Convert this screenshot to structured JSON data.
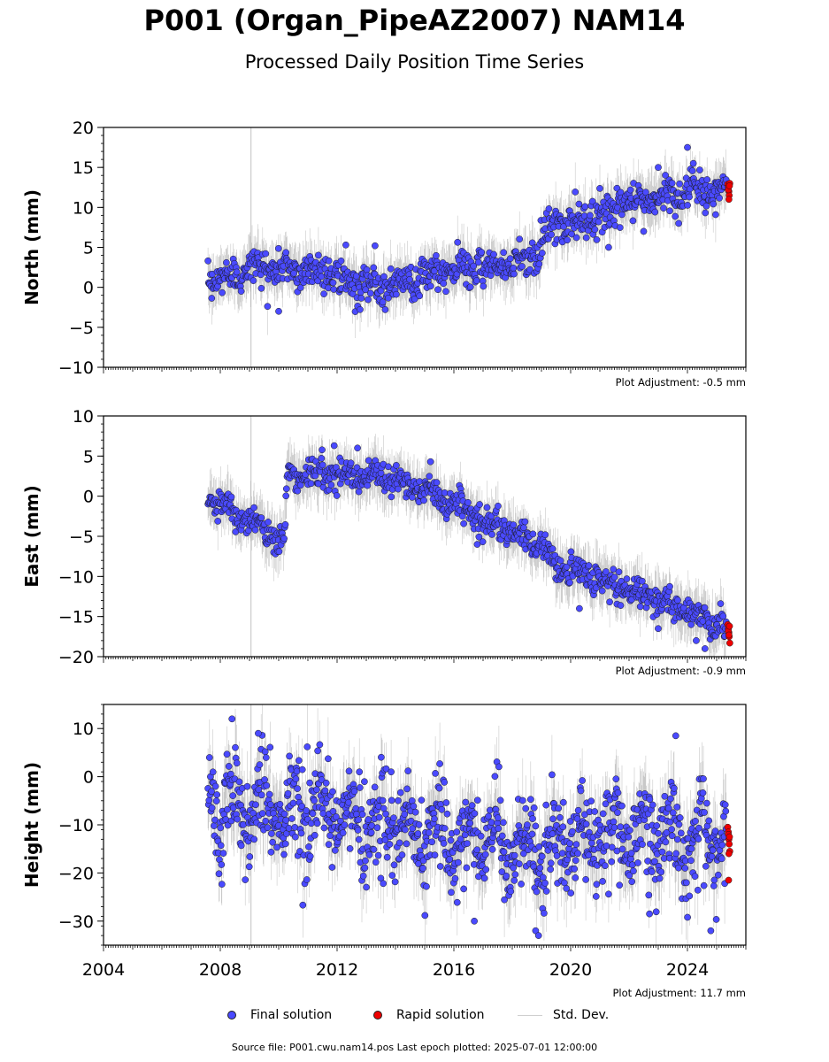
{
  "title": "P001 (Organ_PipeAZ2007) NAM14",
  "subtitle": "Processed Daily Position Time Series",
  "footer": "Source file: P001.cwu.nam14.pos  Last epoch plotted: 2025-07-01 12:00:00",
  "legend": {
    "final": "Final solution",
    "rapid": "Rapid solution",
    "std": "Std. Dev."
  },
  "colors": {
    "final": "#4a4aff",
    "rapid": "#ee0000",
    "std": "#bdbdbd",
    "edge": "#1a1a1a"
  },
  "chart_data": [
    {
      "type": "scatter",
      "ylabel": "North (mm)",
      "adjustment": "Plot Adjustment: -0.5 mm",
      "xlim": [
        2004,
        2026
      ],
      "ylim": [
        -10,
        20
      ],
      "yticks": [
        -10,
        -5,
        0,
        5,
        10,
        15,
        20
      ],
      "ytick_labels": [
        "−10",
        "−5",
        "0",
        "5",
        "10",
        "15",
        "20"
      ],
      "trend": {
        "x": [
          2007.6,
          2009.0,
          2011.8,
          2012.5,
          2014.0,
          2016.5,
          2018.0,
          2018.9,
          2019.3,
          2020.5,
          2022.0,
          2024.0,
          2025.5
        ],
        "y": [
          0.5,
          2.5,
          2.0,
          0.0,
          0.5,
          2.5,
          3.0,
          4.5,
          7.5,
          8.5,
          10.5,
          12.0,
          12.0
        ]
      },
      "scatter_sd": 1.1,
      "outliers": {
        "x": [
          2012.3,
          2013.3,
          2010.0,
          2023.0,
          2024.0,
          2024.2,
          2021.3,
          2022.5,
          2023.7
        ],
        "y": [
          5.3,
          5.2,
          -3.0,
          15.0,
          17.5,
          15.5,
          5.0,
          7.0,
          8.0
        ]
      },
      "rapid": {
        "x": [
          2025.38,
          2025.4,
          2025.42,
          2025.43,
          2025.45,
          2025.4,
          2025.42,
          2025.44
        ],
        "y": [
          12.9,
          12.5,
          12.0,
          11.5,
          13.0,
          12.2,
          11.0,
          12.7
        ]
      }
    },
    {
      "type": "scatter",
      "ylabel": "East (mm)",
      "adjustment": "Plot Adjustment: -0.9 mm",
      "xlim": [
        2004,
        2026
      ],
      "ylim": [
        -20,
        10
      ],
      "yticks": [
        -20,
        -15,
        -10,
        -5,
        0,
        5,
        10
      ],
      "ytick_labels": [
        "−20",
        "−15",
        "−10",
        "−5",
        "0",
        "5",
        "10"
      ],
      "trend": {
        "x": [
          2007.6,
          2010.2,
          2010.3,
          2012.0,
          2014.0,
          2015.5,
          2017.0,
          2019.0,
          2019.4,
          2021.0,
          2023.0,
          2025.5
        ],
        "y": [
          0.0,
          -5.5,
          2.5,
          3.0,
          2.0,
          0.0,
          -3.0,
          -6.0,
          -8.5,
          -10.5,
          -13.0,
          -16.5
        ]
      },
      "scatter_sd": 0.9,
      "outliers": {
        "x": [
          2011.9,
          2012.7,
          2015.2,
          2016.8,
          2024.6,
          2020.3,
          2023.0,
          2024.3
        ],
        "y": [
          6.3,
          6.0,
          4.3,
          -6.0,
          -19.0,
          -14.0,
          -16.5,
          -18.0
        ]
      },
      "rapid": {
        "x": [
          2025.38,
          2025.4,
          2025.42,
          2025.43,
          2025.45,
          2025.4,
          2025.42,
          2025.44
        ],
        "y": [
          -16.0,
          -16.5,
          -17.0,
          -17.5,
          -18.3,
          -16.8,
          -17.3,
          -16.2
        ]
      }
    },
    {
      "type": "scatter",
      "ylabel": "Height (mm)",
      "adjustment": "Plot Adjustment: 11.7 mm",
      "xlim": [
        2004,
        2026
      ],
      "ylim": [
        -35,
        15
      ],
      "yticks": [
        -30,
        -20,
        -10,
        0,
        10
      ],
      "ytick_labels": [
        "−30",
        "−20",
        "−10",
        "0",
        "10"
      ],
      "xticks": [
        2004,
        2008,
        2012,
        2016,
        2020,
        2024
      ],
      "trend": {
        "x": [
          2007.6,
          2010.0,
          2012.0,
          2015.0,
          2018.0,
          2019.0,
          2021.0,
          2023.0,
          2025.5
        ],
        "y": [
          -5.0,
          -7.0,
          -8.0,
          -12.0,
          -14.0,
          -16.0,
          -12.0,
          -12.0,
          -13.0
        ]
      },
      "scatter_sd": 5.0,
      "outliers": {
        "x": [
          2008.4,
          2009.3,
          2016.7,
          2018.8,
          2024.8,
          2022.7,
          2023.6,
          2018.9
        ],
        "y": [
          12.0,
          9.0,
          -30.0,
          -32.0,
          -32.0,
          -28.5,
          8.5,
          -33.0
        ]
      },
      "rapid": {
        "x": [
          2025.38,
          2025.4,
          2025.42,
          2025.43,
          2025.45,
          2025.4,
          2025.42,
          2025.44,
          2025.41
        ],
        "y": [
          -10.5,
          -11.5,
          -13.0,
          -14.0,
          -15.5,
          -12.0,
          -16.0,
          -12.5,
          -21.5
        ]
      }
    }
  ]
}
